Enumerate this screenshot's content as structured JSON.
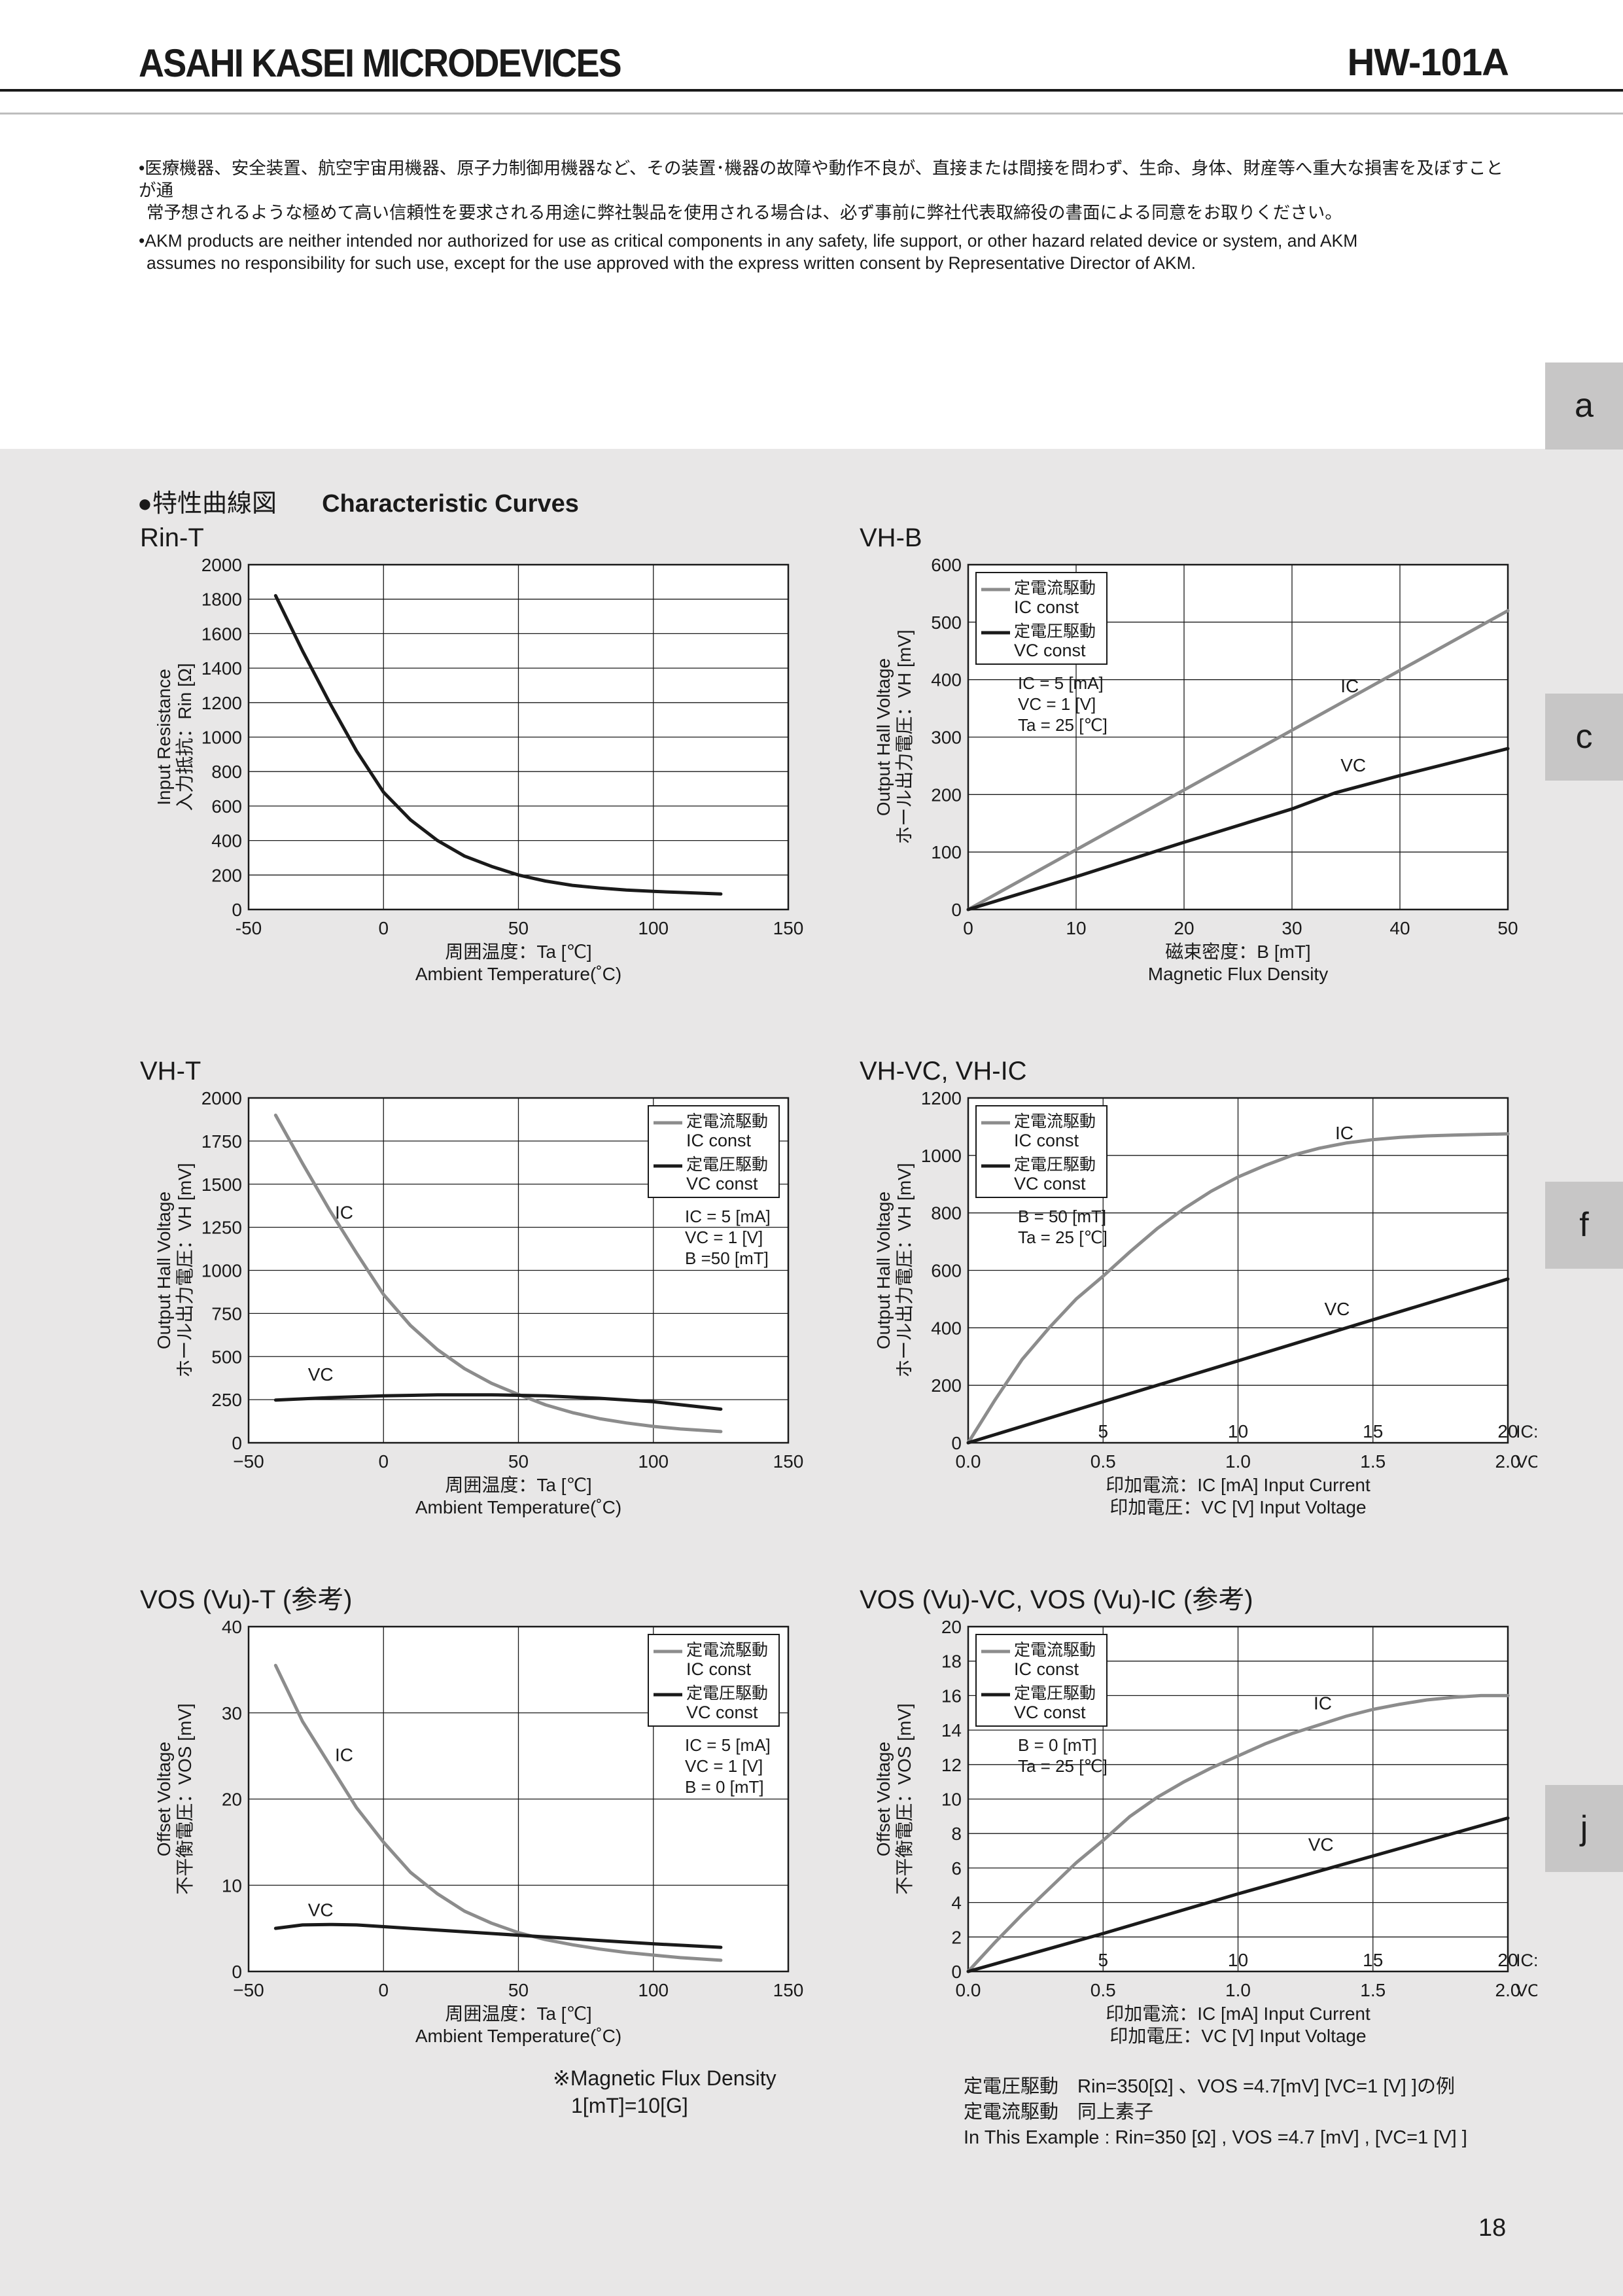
{
  "header": {
    "brand": "ASAHI KASEI MICRODEVICES",
    "part_number": "HW-101A"
  },
  "notices": {
    "jp_line1": "•医療機器、安全装置、航空宇宙用機器、原子力制御用機器など、その装置･機器の故障や動作不良が、直接または間接を問わず、生命、身体、財産等へ重大な損害を及ぼすことが通",
    "jp_line2": "常予想されるような極めて高い信頼性を要求される用途に弊社製品を使用される場合は、必ず事前に弊社代表取締役の書面による同意をお取りください。",
    "en_line1": "•AKM products are neither intended nor authorized for use as critical components in any safety, life support, or other hazard related device or system, and AKM",
    "en_line2": "assumes no responsibility for such use, except for the use approved with the express written consent by Representative Director of AKM."
  },
  "tabs": [
    "a",
    "c",
    "f",
    "j"
  ],
  "section": {
    "title_jp": "●特性曲線図",
    "title_en": "Characteristic Curves"
  },
  "page_number": "18",
  "footnotes": {
    "flux_line1": "※Magnetic Flux Density",
    "flux_line2": "1[mT]=10[G]",
    "ex_line1": "定電圧駆動　Rin=350[Ω] 、VOS =4.7[mV]  [VC=1 [V] ]の例",
    "ex_line2": "定電流駆動　同上素子",
    "ex_line3": "In This Example : Rin=350 [Ω] , VOS =4.7 [mV] , [VC=1 [V] ]"
  },
  "colors": {
    "ic_series": "#8c8c8c",
    "vc_series": "#1a1a1a",
    "background_panel": "#e8e7e7",
    "tab": "#c7c6c6"
  },
  "chart_data": [
    {
      "id": "rin_t",
      "type": "line",
      "title": "Rin-T",
      "xlabel_jp": "周囲温度：Ta [℃]",
      "xlabel_en": "Ambient Temperature(˚C)",
      "ylabel_en": "Input Resistance",
      "ylabel_jp": "入力抵抗：Rin [Ω]",
      "xlim": [
        -50,
        150
      ],
      "ylim": [
        0,
        2000
      ],
      "xticks": [
        "-50",
        "0",
        "50",
        "100",
        "150"
      ],
      "yticks": [
        "0",
        "200",
        "400",
        "600",
        "800",
        "1000",
        "1200",
        "1400",
        "1600",
        "1800",
        "2000"
      ],
      "grid": true,
      "series": [
        {
          "color": "#1a1a1a",
          "x": [
            -40,
            -30,
            -20,
            -10,
            0,
            10,
            20,
            30,
            40,
            50,
            60,
            70,
            80,
            90,
            100,
            110,
            125
          ],
          "values": [
            1820,
            1500,
            1200,
            920,
            680,
            520,
            400,
            310,
            250,
            200,
            165,
            140,
            125,
            113,
            105,
            99,
            90
          ]
        }
      ]
    },
    {
      "id": "vh_b",
      "type": "line",
      "title": "VH-B",
      "xlabel_jp": "磁束密度：B [mT]",
      "xlabel_en": "Magnetic Flux Density",
      "ylabel_en": "Output Hall Voltage",
      "ylabel_jp": "ホール出力電圧：VH [mV]",
      "xlim": [
        0,
        50
      ],
      "ylim": [
        0,
        600
      ],
      "xticks": [
        "0",
        "10",
        "20",
        "30",
        "40",
        "50"
      ],
      "yticks": [
        "0",
        "100",
        "200",
        "300",
        "400",
        "500",
        "600"
      ],
      "grid": true,
      "legend": {
        "position": "top-left",
        "entries": [
          "定電流駆動",
          "IC const",
          "定電圧駆動",
          "VC const"
        ]
      },
      "conditions": [
        "IC =  5  [mA]",
        "VC =  1  [V]",
        "Ta = 25 [℃]"
      ],
      "series": [
        {
          "name": "IC",
          "color": "#8c8c8c",
          "x": [
            0,
            10,
            20,
            30,
            40,
            50
          ],
          "values": [
            0,
            104,
            208,
            312,
            416,
            520
          ]
        },
        {
          "name": "VC",
          "color": "#1a1a1a",
          "x": [
            0,
            10,
            20,
            30,
            34,
            40,
            50
          ],
          "values": [
            0,
            57,
            117,
            175,
            203,
            233,
            280
          ]
        }
      ]
    },
    {
      "id": "vh_t",
      "type": "line",
      "title": "VH-T",
      "xlabel_jp": "周囲温度：Ta [℃]",
      "xlabel_en": "Ambient Temperature(˚C)",
      "ylabel_en": "Output Hall Voltage",
      "ylabel_jp": "ホール出力電圧：VH [mV]",
      "xlim": [
        -50,
        150
      ],
      "ylim": [
        0,
        2000
      ],
      "xticks": [
        "−50",
        "0",
        "50",
        "100",
        "150"
      ],
      "yticks": [
        "0",
        "250",
        "500",
        "750",
        "1000",
        "1250",
        "1500",
        "1750",
        "2000"
      ],
      "grid": true,
      "legend": {
        "position": "top-right",
        "entries": [
          "定電流駆動",
          "IC const",
          "定電圧駆動",
          "VC const"
        ]
      },
      "conditions": [
        "IC =  5  [mA]",
        "VC =  1  [V]",
        "B   =50 [mT]"
      ],
      "series": [
        {
          "name": "IC",
          "color": "#8c8c8c",
          "x": [
            -40,
            -30,
            -20,
            -10,
            0,
            10,
            20,
            30,
            40,
            50,
            60,
            70,
            80,
            90,
            100,
            110,
            125
          ],
          "values": [
            1900,
            1620,
            1350,
            1100,
            860,
            680,
            540,
            430,
            345,
            280,
            220,
            175,
            140,
            115,
            95,
            80,
            65
          ]
        },
        {
          "name": "VC",
          "color": "#1a1a1a",
          "x": [
            -40,
            -20,
            0,
            20,
            40,
            60,
            80,
            100,
            125
          ],
          "values": [
            248,
            262,
            272,
            278,
            278,
            272,
            258,
            238,
            195
          ]
        }
      ]
    },
    {
      "id": "vh_vc_ic",
      "type": "line",
      "title": "VH-VC, VH-IC",
      "xlabel_jp": "印加電流：IC [mA]  Input Current",
      "xlabel_en": "印加電圧：VC [V]  Input Voltage",
      "ylabel_en": "Output Hall Voltage",
      "ylabel_jp": "ホール出力電圧：VH [mV]",
      "xlim": [
        0,
        2.0
      ],
      "ylim": [
        0,
        1200
      ],
      "xticks": [
        "0.0",
        "0.5",
        "1.0",
        "1.5",
        "2.0"
      ],
      "xticks_ic": [
        "5",
        "10",
        "15",
        "20"
      ],
      "xunit_ic": "IC:[mA]",
      "xunit_vc": "VC:[V]",
      "yticks": [
        "0",
        "200",
        "400",
        "600",
        "800",
        "1000",
        "1200"
      ],
      "grid": true,
      "legend": {
        "position": "top-left",
        "entries": [
          "定電流駆動",
          "IC const",
          "定電圧駆動",
          "VC const"
        ]
      },
      "conditions": [
        "B  = 50 [mT]",
        "Ta = 25 [℃]"
      ],
      "series": [
        {
          "name": "IC",
          "color": "#8c8c8c",
          "x": [
            0,
            0.1,
            0.2,
            0.3,
            0.4,
            0.5,
            0.6,
            0.7,
            0.8,
            0.9,
            1.0,
            1.1,
            1.2,
            1.3,
            1.4,
            1.5,
            1.6,
            1.7,
            1.8,
            1.9,
            2.0
          ],
          "values": [
            0,
            150,
            290,
            400,
            500,
            580,
            665,
            745,
            815,
            875,
            925,
            965,
            1000,
            1025,
            1043,
            1055,
            1063,
            1068,
            1071,
            1073,
            1075
          ]
        },
        {
          "name": "VC",
          "color": "#1a1a1a",
          "x": [
            0,
            0.5,
            1.0,
            1.5,
            2.0
          ],
          "values": [
            0,
            143,
            285,
            428,
            570
          ]
        }
      ]
    },
    {
      "id": "vos_t",
      "type": "line",
      "title": "VOS (Vu)-T (参考)",
      "xlabel_jp": "周囲温度：Ta [℃]",
      "xlabel_en": "Ambient Temperature(˚C)",
      "ylabel_en": "Offset Voltage",
      "ylabel_jp": "不平衡電圧：VOS [mV]",
      "xlim": [
        -50,
        150
      ],
      "ylim": [
        0,
        40
      ],
      "xticks": [
        "−50",
        "0",
        "50",
        "100",
        "150"
      ],
      "yticks": [
        "0",
        "10",
        "20",
        "30",
        "40"
      ],
      "grid": true,
      "legend": {
        "position": "top-right",
        "entries": [
          "定電流駆動",
          "IC const",
          "定電圧駆動",
          "VC const"
        ]
      },
      "conditions": [
        "IC  = 5  [mA]",
        "VC  = 1  [V]",
        "B   = 0 [mT]"
      ],
      "series": [
        {
          "name": "IC",
          "color": "#8c8c8c",
          "x": [
            -40,
            -30,
            -20,
            -10,
            0,
            10,
            20,
            30,
            40,
            50,
            60,
            70,
            80,
            90,
            100,
            110,
            125
          ],
          "values": [
            35.5,
            29,
            24,
            19,
            15,
            11.5,
            9,
            7,
            5.6,
            4.5,
            3.7,
            3.1,
            2.6,
            2.2,
            1.9,
            1.6,
            1.3
          ]
        },
        {
          "name": "VC",
          "color": "#1a1a1a",
          "x": [
            -40,
            -30,
            -20,
            -10,
            0,
            20,
            40,
            60,
            80,
            100,
            125
          ],
          "values": [
            5.0,
            5.4,
            5.45,
            5.4,
            5.2,
            4.8,
            4.4,
            4.0,
            3.6,
            3.2,
            2.8
          ]
        }
      ]
    },
    {
      "id": "vos_vc_ic",
      "type": "line",
      "title": "VOS (Vu)-VC, VOS (Vu)-IC (参考)",
      "xlabel_jp": "印加電流：IC [mA]  Input Current",
      "xlabel_en": "印加電圧：VC [V]  Input Voltage",
      "ylabel_en": "Offset Voltage",
      "ylabel_jp": "不平衡電圧：VOS [mV]",
      "xlim": [
        0,
        2.0
      ],
      "ylim": [
        0,
        20
      ],
      "xticks": [
        "0.0",
        "0.5",
        "1.0",
        "1.5",
        "2.0"
      ],
      "xticks_ic": [
        "5",
        "10",
        "15",
        "20"
      ],
      "xunit_ic": "IC:[mA]",
      "xunit_vc": "VC:[V]",
      "yticks": [
        "0",
        "2",
        "4",
        "6",
        "8",
        "10",
        "12",
        "14",
        "16",
        "18",
        "20"
      ],
      "grid": true,
      "legend": {
        "position": "top-left",
        "entries": [
          "定電流駆動",
          "IC const",
          "定電圧駆動",
          "VC const"
        ]
      },
      "conditions": [
        "B  =   0 [mT]",
        "Ta = 25 [℃]"
      ],
      "series": [
        {
          "name": "IC",
          "color": "#8c8c8c",
          "x": [
            0,
            0.1,
            0.2,
            0.3,
            0.4,
            0.5,
            0.6,
            0.7,
            0.8,
            0.9,
            1.0,
            1.1,
            1.2,
            1.3,
            1.4,
            1.5,
            1.6,
            1.7,
            1.8,
            1.9,
            2.0
          ],
          "values": [
            0,
            1.7,
            3.3,
            4.8,
            6.3,
            7.6,
            9.0,
            10.1,
            11.0,
            11.8,
            12.5,
            13.2,
            13.8,
            14.3,
            14.8,
            15.2,
            15.5,
            15.75,
            15.9,
            16.0,
            16.0
          ]
        },
        {
          "name": "VC",
          "color": "#1a1a1a",
          "x": [
            0,
            0.5,
            1.0,
            1.5,
            2.0
          ],
          "values": [
            0,
            2.2,
            4.5,
            6.7,
            8.9
          ]
        }
      ]
    }
  ]
}
